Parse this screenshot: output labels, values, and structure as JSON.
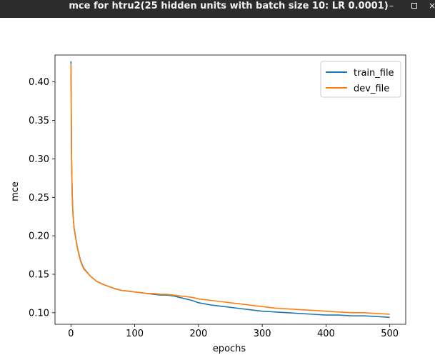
{
  "window": {
    "title": "mce for htru2(25 hidden units with batch size 10: LR 0.0001)",
    "minimize_glyph": "–",
    "close_glyph": "×"
  },
  "chart_data": {
    "type": "line",
    "title": "",
    "xlabel": "epochs",
    "ylabel": "mce",
    "xlim": [
      -25,
      525
    ],
    "ylim": [
      0.085,
      0.435
    ],
    "xticks": [
      0,
      100,
      200,
      300,
      400,
      500
    ],
    "yticks": [
      0.1,
      0.15,
      0.2,
      0.25,
      0.3,
      0.35,
      0.4
    ],
    "ytick_labels": [
      "0.10",
      "0.15",
      "0.20",
      "0.25",
      "0.30",
      "0.35",
      "0.40"
    ],
    "grid": false,
    "legend_position": "top-right",
    "series": [
      {
        "name": "train_file",
        "color": "#1f77b4",
        "x": [
          0,
          1,
          2,
          3,
          5,
          8,
          10,
          15,
          20,
          30,
          40,
          50,
          60,
          70,
          80,
          90,
          100,
          110,
          120,
          130,
          140,
          150,
          160,
          170,
          180,
          190,
          200,
          220,
          240,
          260,
          280,
          300,
          320,
          340,
          360,
          380,
          400,
          420,
          440,
          460,
          480,
          500
        ],
        "y": [
          0.427,
          0.3,
          0.255,
          0.23,
          0.21,
          0.195,
          0.185,
          0.168,
          0.158,
          0.148,
          0.141,
          0.137,
          0.134,
          0.131,
          0.129,
          0.128,
          0.127,
          0.126,
          0.125,
          0.124,
          0.123,
          0.123,
          0.122,
          0.12,
          0.118,
          0.116,
          0.113,
          0.11,
          0.108,
          0.106,
          0.104,
          0.102,
          0.101,
          0.1,
          0.099,
          0.098,
          0.097,
          0.097,
          0.096,
          0.096,
          0.095,
          0.094
        ]
      },
      {
        "name": "dev_file",
        "color": "#ff7f0e",
        "x": [
          0,
          1,
          2,
          3,
          5,
          8,
          10,
          15,
          20,
          30,
          40,
          50,
          60,
          70,
          80,
          90,
          100,
          110,
          120,
          130,
          140,
          150,
          160,
          170,
          180,
          190,
          200,
          220,
          240,
          260,
          280,
          300,
          320,
          340,
          360,
          380,
          400,
          420,
          440,
          460,
          480,
          500
        ],
        "y": [
          0.424,
          0.3,
          0.254,
          0.229,
          0.209,
          0.194,
          0.184,
          0.167,
          0.157,
          0.148,
          0.141,
          0.137,
          0.134,
          0.131,
          0.129,
          0.128,
          0.127,
          0.126,
          0.125,
          0.125,
          0.124,
          0.124,
          0.123,
          0.122,
          0.121,
          0.12,
          0.118,
          0.116,
          0.114,
          0.112,
          0.11,
          0.108,
          0.106,
          0.105,
          0.104,
          0.103,
          0.102,
          0.101,
          0.1,
          0.1,
          0.099,
          0.098
        ]
      }
    ]
  }
}
